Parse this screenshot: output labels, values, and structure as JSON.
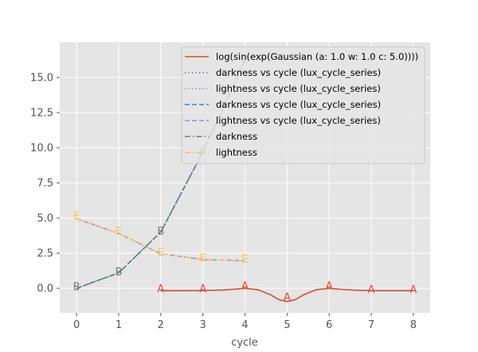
{
  "chart_data": {
    "type": "line",
    "title": "",
    "xlabel": "cycle",
    "ylabel": "",
    "xlim": [
      -0.4,
      8.4
    ],
    "ylim": [
      -1.75,
      17.5
    ],
    "xticks": [
      0,
      1,
      2,
      3,
      4,
      5,
      6,
      7,
      8
    ],
    "xtick_labels": [
      "0",
      "1",
      "2",
      "3",
      "4",
      "5",
      "6",
      "7",
      "8"
    ],
    "yticks": [
      0.0,
      2.5,
      5.0,
      7.5,
      10.0,
      12.5,
      15.0
    ],
    "ytick_labels": [
      "0.0",
      "2.5",
      "5.0",
      "7.5",
      "10.0",
      "12.5",
      "15.0"
    ],
    "grid": true,
    "legend_position": "top-right",
    "series": [
      {
        "name": "log(sin(exp(Gaussian (a: 1.0 w: 1.0 c: 5.0))))",
        "style": "solid",
        "color": "#e24a33",
        "x": [
          2,
          2.5,
          3,
          3.5,
          4,
          4.3,
          4.6,
          4.8,
          5.0,
          5.2,
          5.4,
          5.7,
          6.0,
          6.3,
          6.6,
          7.0,
          7.5,
          8.0
        ],
        "y": [
          -0.17,
          -0.17,
          -0.16,
          -0.12,
          0.0,
          -0.1,
          -0.45,
          -0.8,
          -0.95,
          -0.8,
          -0.45,
          -0.1,
          0.0,
          -0.08,
          -0.13,
          -0.17,
          -0.17,
          -0.17
        ],
        "markers": {
          "label": "A",
          "x": [
            2,
            3,
            4,
            5,
            6,
            7,
            8
          ],
          "y": [
            0.0,
            -0.0,
            0.2,
            -0.6,
            0.2,
            -0.05,
            -0.05
          ]
        }
      },
      {
        "name": "darkness vs cycle (lux_cycle_series)",
        "style": "dotted",
        "color": "#348abd",
        "x": [
          0,
          1,
          2,
          3,
          4
        ],
        "y": [
          0.0,
          1.1,
          4.0,
          9.7,
          16.2
        ]
      },
      {
        "name": "lightness vs cycle (lux_cycle_series)",
        "style": "dotted",
        "color": "#988ed5",
        "x": [
          0,
          1,
          2,
          3,
          4
        ],
        "y": [
          4.95,
          3.9,
          2.45,
          2.05,
          1.95
        ]
      },
      {
        "name": "darkness vs cycle (lux_cycle_series)",
        "style": "dashed",
        "color": "#348abd",
        "x": [
          0,
          1,
          2,
          3,
          4
        ],
        "y": [
          0.0,
          1.1,
          4.0,
          9.7,
          16.2
        ]
      },
      {
        "name": "lightness vs cycle (lux_cycle_series)",
        "style": "dashed",
        "color": "#988ed5",
        "x": [
          0,
          1,
          2,
          3,
          4
        ],
        "y": [
          4.95,
          3.9,
          2.45,
          2.05,
          1.95
        ]
      },
      {
        "name": "darkness",
        "style": "dashdot",
        "color": "#777777",
        "x": [
          0,
          1,
          2,
          3,
          4
        ],
        "y": [
          0.0,
          1.1,
          4.0,
          9.7,
          16.2
        ],
        "markers": {
          "label": "B",
          "x": [
            0,
            1,
            2,
            3,
            4
          ],
          "y": [
            0.15,
            1.2,
            4.1,
            9.8,
            16.3
          ]
        }
      },
      {
        "name": "lightness",
        "style": "dashdot",
        "color": "#fbc15e",
        "x": [
          0,
          1,
          2,
          3,
          4
        ],
        "y": [
          4.95,
          3.9,
          2.45,
          2.05,
          1.95
        ],
        "markers": {
          "label": "E",
          "x": [
            0,
            1,
            2,
            3,
            4
          ],
          "y": [
            5.2,
            4.1,
            2.6,
            2.2,
            2.1
          ]
        }
      }
    ]
  }
}
